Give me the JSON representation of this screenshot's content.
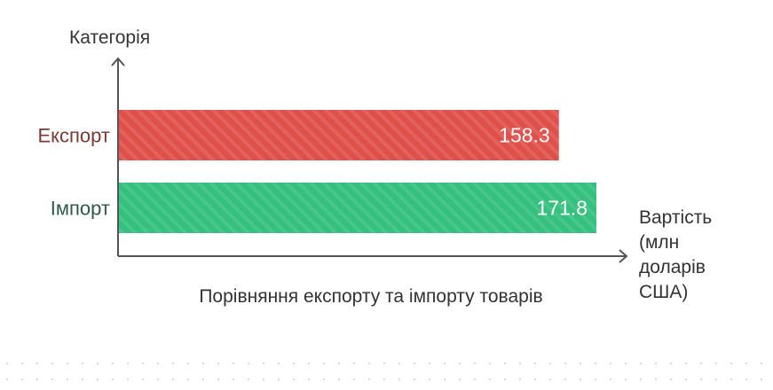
{
  "chart_data": {
    "type": "bar",
    "orientation": "horizontal",
    "categories": [
      "Експорт",
      "Імпорт"
    ],
    "values": [
      158.3,
      171.8
    ],
    "colors": [
      "#e0504b",
      "#34c07e"
    ],
    "label_colors": [
      "#7a3a32",
      "#2d5a47"
    ],
    "value_label_color": "#ffffff",
    "xlim": [
      0,
      190
    ],
    "title": "",
    "xlabel_lines": [
      "Вартість",
      "(млн",
      "доларів",
      "США)"
    ],
    "ylabel": "Категорія",
    "caption": "Порівняння експорту та імпорту товарів",
    "grid": false,
    "axis_color": "#555555",
    "text_color": "#333333"
  }
}
